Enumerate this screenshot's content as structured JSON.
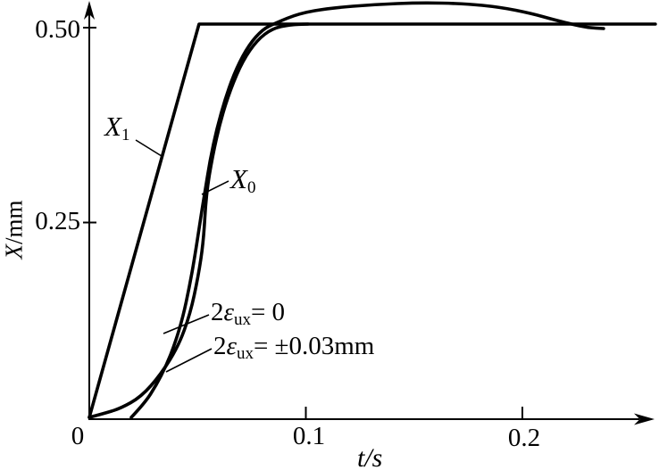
{
  "figure": {
    "background_color": "#ffffff",
    "line_color": "#000000"
  },
  "chart_data": {
    "type": "line",
    "title": "",
    "grid": false,
    "legend_position": "none",
    "xlabel": {
      "italic": "t",
      "rest": "/s"
    },
    "ylabel": {
      "italic": "X",
      "rest": "/mm"
    },
    "xlim": [
      0,
      0.264
    ],
    "ylim": [
      0,
      0.535
    ],
    "x_ticks": [
      {
        "value": 0,
        "label": "0"
      },
      {
        "value": 0.1,
        "label": "0.1"
      },
      {
        "value": 0.2,
        "label": "0.2"
      }
    ],
    "y_ticks": [
      {
        "value": 0.25,
        "label": "0.25"
      },
      {
        "value": 0.5,
        "label": "0.50"
      }
    ],
    "series": [
      {
        "name": "X1-input-ramp",
        "style": "straight",
        "points": [
          [
            0,
            0
          ],
          [
            0.0507,
            0.5046
          ],
          [
            0.2614,
            0.5046
          ]
        ]
      },
      {
        "name": "X0-response-eps-0",
        "style": "smooth",
        "points": [
          [
            0,
            0
          ],
          [
            0.0062,
            0.0046
          ],
          [
            0.0144,
            0.0114
          ],
          [
            0.0239,
            0.0263
          ],
          [
            0.033,
            0.0549
          ],
          [
            0.0412,
            0.0915
          ],
          [
            0.0466,
            0.1327
          ],
          [
            0.0503,
            0.1808
          ],
          [
            0.0528,
            0.2265
          ],
          [
            0.054,
            0.286
          ],
          [
            0.0569,
            0.3352
          ],
          [
            0.0606,
            0.381
          ],
          [
            0.0652,
            0.421
          ],
          [
            0.0709,
            0.4577
          ],
          [
            0.0775,
            0.484
          ],
          [
            0.0845,
            0.4989
          ],
          [
            0.0928,
            0.504
          ],
          [
            0.101,
            0.5046
          ]
        ]
      },
      {
        "name": "X0-response-eps-003",
        "style": "smooth",
        "points": [
          [
            0.0194,
            0
          ],
          [
            0.0256,
            0.0183
          ],
          [
            0.0309,
            0.0412
          ],
          [
            0.0355,
            0.0664
          ],
          [
            0.0396,
            0.095
          ],
          [
            0.0433,
            0.1293
          ],
          [
            0.0462,
            0.167
          ],
          [
            0.0487,
            0.2059
          ],
          [
            0.0511,
            0.2494
          ],
          [
            0.0532,
            0.286
          ],
          [
            0.0557,
            0.3295
          ],
          [
            0.059,
            0.3719
          ],
          [
            0.0631,
            0.4119
          ],
          [
            0.068,
            0.4485
          ],
          [
            0.0738,
            0.4783
          ],
          [
            0.08,
            0.4977
          ],
          [
            0.0858,
            0.5057
          ],
          [
            0.0969,
            0.5183
          ],
          [
            0.1113,
            0.5252
          ],
          [
            0.132,
            0.5297
          ],
          [
            0.1526,
            0.532
          ],
          [
            0.1732,
            0.5309
          ],
          [
            0.1897,
            0.5263
          ],
          [
            0.2041,
            0.5183
          ],
          [
            0.2144,
            0.5103
          ],
          [
            0.2227,
            0.5046
          ],
          [
            0.2301,
            0.5
          ],
          [
            0.2375,
            0.4989
          ]
        ]
      }
    ]
  },
  "annotations": {
    "x1": {
      "base": "X",
      "sub": "1"
    },
    "x0": {
      "base": "X",
      "sub": "0"
    },
    "eps0": {
      "num": "2",
      "greek": "ε",
      "sub": "ux",
      "eq": "= 0"
    },
    "eps003": {
      "num": "2",
      "greek": "ε",
      "sub": "ux",
      "eq": "= ±0.03mm"
    }
  }
}
